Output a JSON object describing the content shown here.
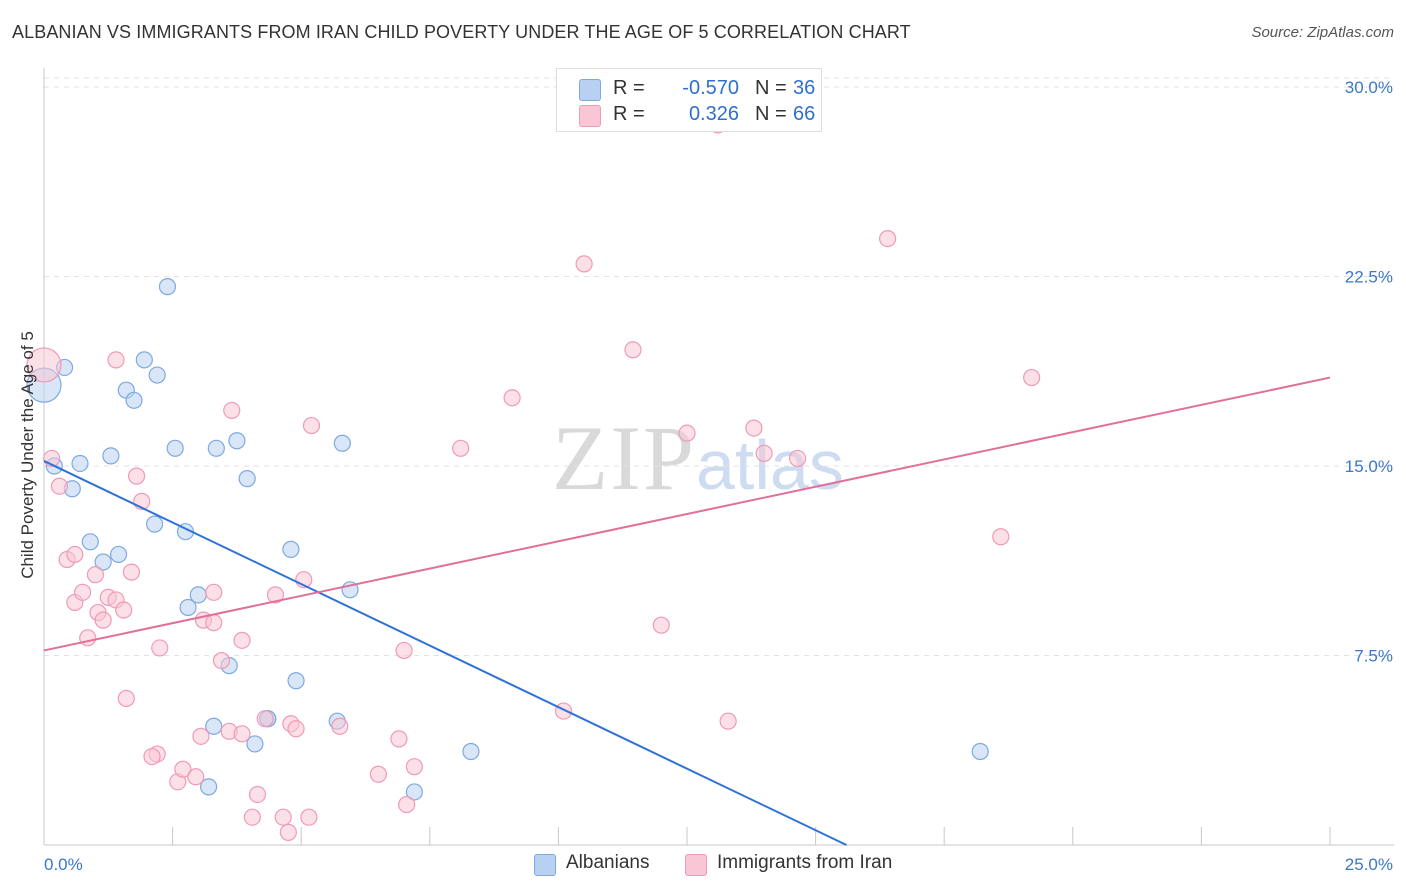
{
  "title": "ALBANIAN VS IMMIGRANTS FROM IRAN CHILD POVERTY UNDER THE AGE OF 5 CORRELATION CHART",
  "source": "Source: ZipAtlas.com",
  "watermark": {
    "zip": "ZIP",
    "atlas": "atlas"
  },
  "legend_stats": [
    {
      "r_label": "R =",
      "r_value": "-0.570",
      "n_label": "N =",
      "n_value": "36",
      "fill": "#b8d1f3",
      "stroke": "#7fa9e0"
    },
    {
      "r_label": "R =",
      "r_value": "0.326",
      "n_label": "N =",
      "n_value": "66",
      "fill": "#f9c6d5",
      "stroke": "#ef9ab6"
    }
  ],
  "chart_data": {
    "type": "scatter",
    "title": "ALBANIAN VS IMMIGRANTS FROM IRAN CHILD POVERTY UNDER THE AGE OF 5 CORRELATION CHART",
    "xlabel": "",
    "ylabel": "Child Poverty Under the Age of 5",
    "xlim": [
      0,
      25
    ],
    "ylim": [
      0,
      30
    ],
    "x_tick_labels": [
      "0.0%",
      "25.0%"
    ],
    "y_ticks": [
      7.5,
      15.0,
      22.5,
      30.0
    ],
    "y_tick_labels": [
      "7.5%",
      "15.0%",
      "22.5%",
      "30.0%"
    ],
    "grid": "horizontal dashed",
    "legend_position": "bottom-center",
    "series": [
      {
        "name": "Albanians",
        "color": "#7fa9e0",
        "fill": "#b8d1f3",
        "line_color": "#2f72d6",
        "trend": {
          "x": [
            0,
            15.6
          ],
          "y": [
            15.2,
            0
          ]
        },
        "points": [
          [
            0.0,
            18.2
          ],
          [
            0.4,
            18.9
          ],
          [
            0.2,
            15.0
          ],
          [
            0.7,
            15.1
          ],
          [
            0.55,
            14.1
          ],
          [
            1.3,
            15.4
          ],
          [
            0.9,
            12.0
          ],
          [
            1.45,
            11.5
          ],
          [
            1.15,
            11.2
          ],
          [
            1.6,
            18.0
          ],
          [
            1.75,
            17.6
          ],
          [
            1.95,
            19.2
          ],
          [
            2.2,
            18.6
          ],
          [
            2.4,
            22.1
          ],
          [
            2.55,
            15.7
          ],
          [
            2.15,
            12.7
          ],
          [
            2.75,
            12.4
          ],
          [
            3.35,
            15.7
          ],
          [
            3.75,
            16.0
          ],
          [
            3.95,
            14.5
          ],
          [
            3.0,
            9.9
          ],
          [
            2.8,
            9.4
          ],
          [
            3.6,
            7.1
          ],
          [
            3.3,
            4.7
          ],
          [
            4.1,
            4.0
          ],
          [
            3.2,
            2.3
          ],
          [
            4.35,
            5.0
          ],
          [
            4.8,
            11.7
          ],
          [
            4.9,
            6.5
          ],
          [
            5.7,
            4.9
          ],
          [
            5.8,
            15.9
          ],
          [
            5.95,
            10.1
          ],
          [
            7.2,
            2.1
          ],
          [
            8.3,
            3.7
          ],
          [
            18.2,
            3.7
          ],
          [
            4.35,
            5.0
          ]
        ]
      },
      {
        "name": "Immigrants from Iran",
        "color": "#ef9ab6",
        "fill": "#f9c6d5",
        "line_color": "#e0709a",
        "trend": {
          "x": [
            0,
            25
          ],
          "y": [
            7.7,
            18.5
          ]
        },
        "points": [
          [
            0.0,
            19.0
          ],
          [
            0.15,
            15.3
          ],
          [
            0.3,
            14.2
          ],
          [
            0.45,
            11.3
          ],
          [
            0.6,
            11.5
          ],
          [
            0.6,
            9.6
          ],
          [
            0.75,
            10.0
          ],
          [
            0.85,
            8.2
          ],
          [
            1.0,
            10.7
          ],
          [
            1.05,
            9.2
          ],
          [
            1.15,
            8.9
          ],
          [
            1.25,
            9.8
          ],
          [
            1.4,
            9.7
          ],
          [
            1.55,
            9.3
          ],
          [
            1.7,
            10.8
          ],
          [
            1.8,
            14.6
          ],
          [
            1.9,
            13.6
          ],
          [
            1.4,
            19.2
          ],
          [
            2.25,
            7.8
          ],
          [
            1.6,
            5.8
          ],
          [
            2.2,
            3.6
          ],
          [
            2.1,
            3.5
          ],
          [
            2.6,
            2.5
          ],
          [
            2.7,
            3.0
          ],
          [
            2.95,
            2.7
          ],
          [
            3.05,
            4.3
          ],
          [
            3.1,
            8.9
          ],
          [
            3.3,
            8.8
          ],
          [
            3.3,
            10.0
          ],
          [
            3.45,
            7.3
          ],
          [
            3.6,
            4.5
          ],
          [
            3.65,
            17.2
          ],
          [
            3.85,
            8.1
          ],
          [
            4.05,
            1.1
          ],
          [
            4.15,
            2.0
          ],
          [
            4.3,
            5.0
          ],
          [
            4.5,
            9.9
          ],
          [
            4.65,
            1.1
          ],
          [
            4.75,
            0.5
          ],
          [
            4.8,
            4.8
          ],
          [
            4.9,
            4.6
          ],
          [
            5.05,
            10.5
          ],
          [
            5.15,
            1.1
          ],
          [
            5.2,
            16.6
          ],
          [
            5.75,
            4.7
          ],
          [
            6.5,
            2.8
          ],
          [
            6.9,
            4.2
          ],
          [
            7.0,
            7.7
          ],
          [
            7.05,
            1.6
          ],
          [
            7.2,
            3.1
          ],
          [
            8.1,
            15.7
          ],
          [
            9.1,
            17.7
          ],
          [
            10.5,
            23.0
          ],
          [
            10.1,
            5.3
          ],
          [
            11.45,
            19.6
          ],
          [
            12.0,
            8.7
          ],
          [
            12.5,
            16.3
          ],
          [
            13.1,
            28.5
          ],
          [
            13.3,
            4.9
          ],
          [
            13.8,
            16.5
          ],
          [
            14.0,
            15.5
          ],
          [
            14.65,
            15.3
          ],
          [
            16.4,
            24.0
          ],
          [
            18.6,
            12.2
          ],
          [
            19.2,
            18.5
          ],
          [
            3.85,
            4.4
          ]
        ]
      }
    ]
  }
}
